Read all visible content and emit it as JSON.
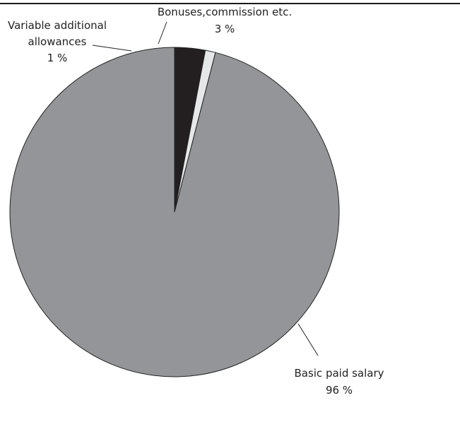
{
  "chart_data": {
    "type": "pie",
    "slices": [
      {
        "label": "Bonuses,commission etc.",
        "value": 3,
        "value_label": "3 %",
        "color": "#231f20"
      },
      {
        "label": "Variable additional allowances",
        "label_lines": [
          "Variable additional",
          "allowances"
        ],
        "value": 1,
        "value_label": "1 %",
        "color": "#e6e7e8"
      },
      {
        "label": "Basic paid salary",
        "value": 96,
        "value_label": "96 %",
        "color": "#939598"
      }
    ],
    "start_angle": "12 o'clock",
    "direction": "clockwise",
    "legend": "none (callout labels)",
    "title": ""
  }
}
